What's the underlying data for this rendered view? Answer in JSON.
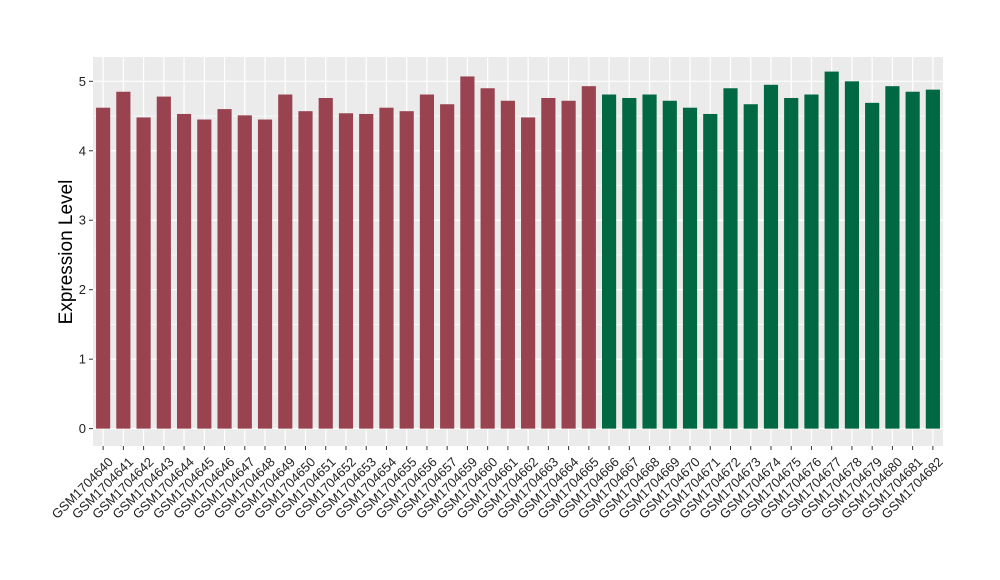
{
  "chart_data": {
    "type": "bar",
    "title": "",
    "xlabel": "",
    "ylabel": "Expression Level",
    "ylim": [
      -0.25,
      5.35
    ],
    "yticks": [
      0,
      1,
      2,
      3,
      4,
      5
    ],
    "grid": true,
    "background": "#ebebeb",
    "gridline_color": "#ffffff",
    "categories": [
      "GSM1704640",
      "GSM1704641",
      "GSM1704642",
      "GSM1704643",
      "GSM1704644",
      "GSM1704645",
      "GSM1704646",
      "GSM1704647",
      "GSM1704648",
      "GSM1704649",
      "GSM1704650",
      "GSM1704651",
      "GSM1704652",
      "GSM1704653",
      "GSM1704654",
      "GSM1704655",
      "GSM1704656",
      "GSM1704657",
      "GSM1704659",
      "GSM1704660",
      "GSM1704661",
      "GSM1704662",
      "GSM1704663",
      "GSM1704664",
      "GSM1704665",
      "GSM1704666",
      "GSM1704667",
      "GSM1704668",
      "GSM1704669",
      "GSM1704670",
      "GSM1704671",
      "GSM1704672",
      "GSM1704673",
      "GSM1704674",
      "GSM1704675",
      "GSM1704676",
      "GSM1704677",
      "GSM1704678",
      "GSM1704679",
      "GSM1704680",
      "GSM1704681",
      "GSM1704682"
    ],
    "values": [
      4.62,
      4.85,
      4.48,
      4.78,
      4.53,
      4.45,
      4.6,
      4.51,
      4.45,
      4.81,
      4.57,
      4.76,
      4.54,
      4.53,
      4.62,
      4.57,
      4.81,
      4.67,
      5.07,
      4.9,
      4.72,
      4.48,
      4.76,
      4.72,
      4.93,
      4.81,
      4.76,
      4.81,
      4.72,
      4.62,
      4.53,
      4.9,
      4.67,
      4.95,
      4.76,
      4.81,
      5.14,
      5.0,
      4.69,
      4.93,
      4.85,
      4.88
    ],
    "group_colors": [
      "#9a4350",
      "#006842"
    ],
    "groups": [
      0,
      0,
      0,
      0,
      0,
      0,
      0,
      0,
      0,
      0,
      0,
      0,
      0,
      0,
      0,
      0,
      0,
      0,
      0,
      0,
      0,
      0,
      0,
      0,
      0,
      1,
      1,
      1,
      1,
      1,
      1,
      1,
      1,
      1,
      1,
      1,
      1,
      1,
      1,
      1,
      1,
      1
    ]
  }
}
